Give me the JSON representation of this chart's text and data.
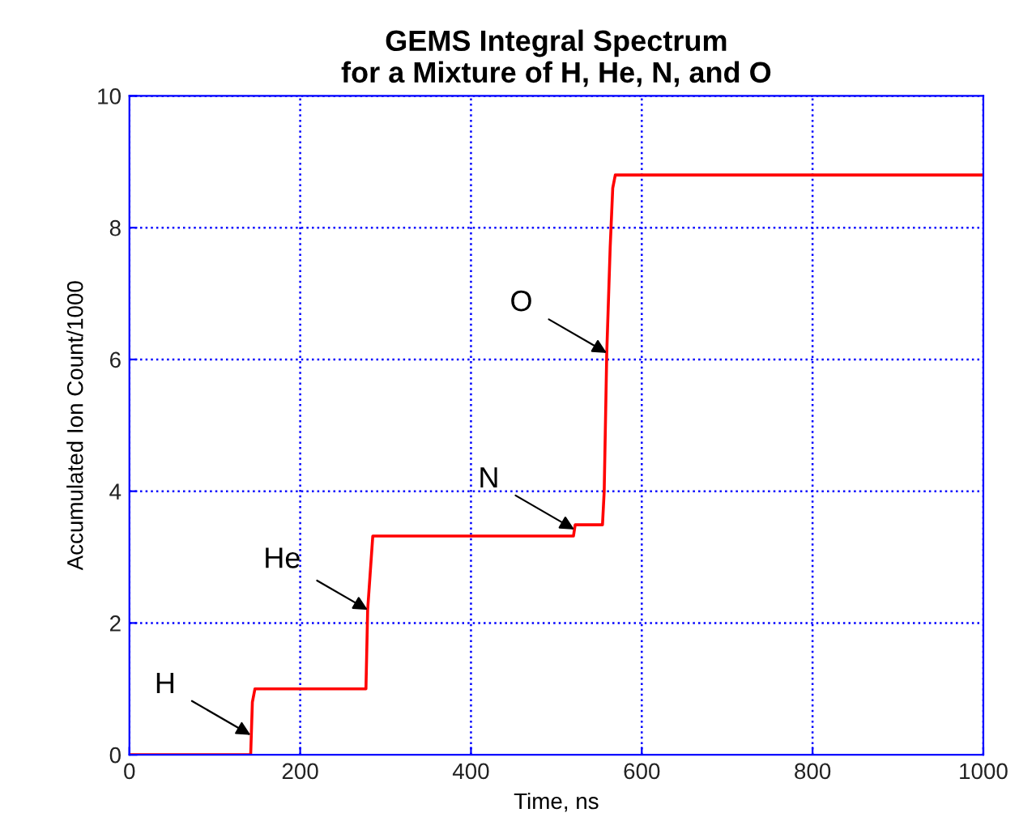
{
  "chart_data": {
    "type": "line",
    "title": "GEMS Integral Spectrum\nfor a Mixture of H, He, N, and O",
    "xlabel": "Time, ns",
    "ylabel": "Accumulated Ion Count/1000",
    "x": [
      0,
      142,
      144,
      147,
      277,
      279,
      285,
      520,
      522,
      554,
      556,
      559,
      563,
      566,
      569,
      1000
    ],
    "series": [
      {
        "color": "#ff0000",
        "values": [
          0,
          0,
          0.8,
          1.0,
          1.0,
          2.2,
          3.32,
          3.32,
          3.49,
          3.49,
          4.0,
          6.1,
          7.7,
          8.6,
          8.8,
          8.8
        ]
      }
    ],
    "xlim": [
      0,
      1000
    ],
    "ylim": [
      0,
      10
    ],
    "xticks": [
      0,
      200,
      400,
      600,
      800,
      1000
    ],
    "yticks": [
      0,
      2,
      4,
      6,
      8,
      10
    ],
    "grid": true,
    "legend": false,
    "marker": "none",
    "line_style": "solid",
    "annotations": [
      {
        "text": "H",
        "x": 142,
        "y": 0.3
      },
      {
        "text": "He",
        "x": 279,
        "y": 2.2
      },
      {
        "text": "N",
        "x": 521,
        "y": 3.42
      },
      {
        "text": "O",
        "x": 559,
        "y": 6.1
      }
    ]
  }
}
